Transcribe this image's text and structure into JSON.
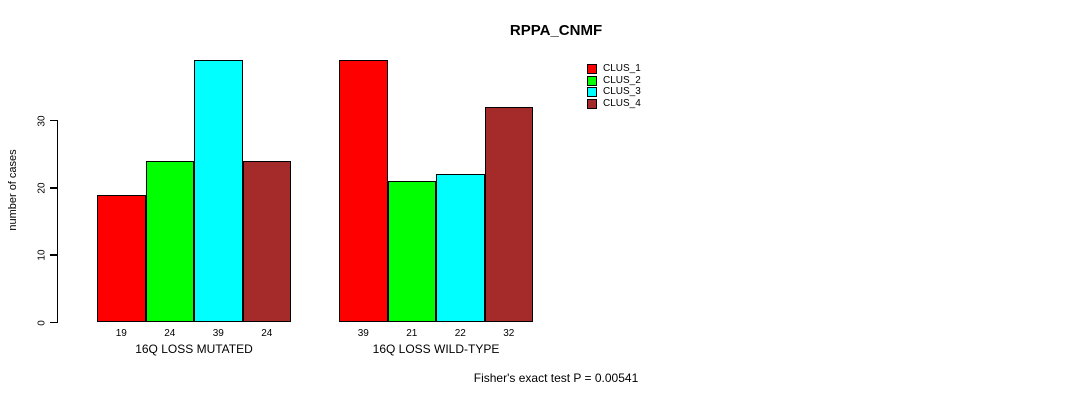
{
  "chart_data": {
    "type": "bar",
    "title": "RPPA_CNMF",
    "xlabel": "",
    "ylabel": "number of cases",
    "yticks": [
      0,
      10,
      20,
      30
    ],
    "ylim": [
      0,
      40
    ],
    "grid": false,
    "legend_position": "top-right",
    "categories": [
      "16Q LOSS MUTATED",
      "16Q LOSS WILD-TYPE"
    ],
    "series": [
      {
        "name": "CLUS_1",
        "color": "#FF0000",
        "values": [
          19,
          39
        ]
      },
      {
        "name": "CLUS_2",
        "color": "#00FF00",
        "values": [
          24,
          21
        ]
      },
      {
        "name": "CLUS_3",
        "color": "#00FFFF",
        "values": [
          39,
          22
        ]
      },
      {
        "name": "CLUS_4",
        "color": "#A52A2A",
        "values": [
          24,
          32
        ]
      }
    ],
    "bar_value_labels": {
      "16Q LOSS MUTATED": [
        19,
        24,
        39,
        24
      ],
      "16Q LOSS WILD-TYPE": [
        39,
        21,
        22,
        32
      ]
    },
    "annotation": "Fisher's exact test P = 0.00541"
  },
  "colors": {
    "background": "#FFFFFF",
    "axis": "#000000",
    "bar_border": "#000000",
    "text": "#000000"
  }
}
